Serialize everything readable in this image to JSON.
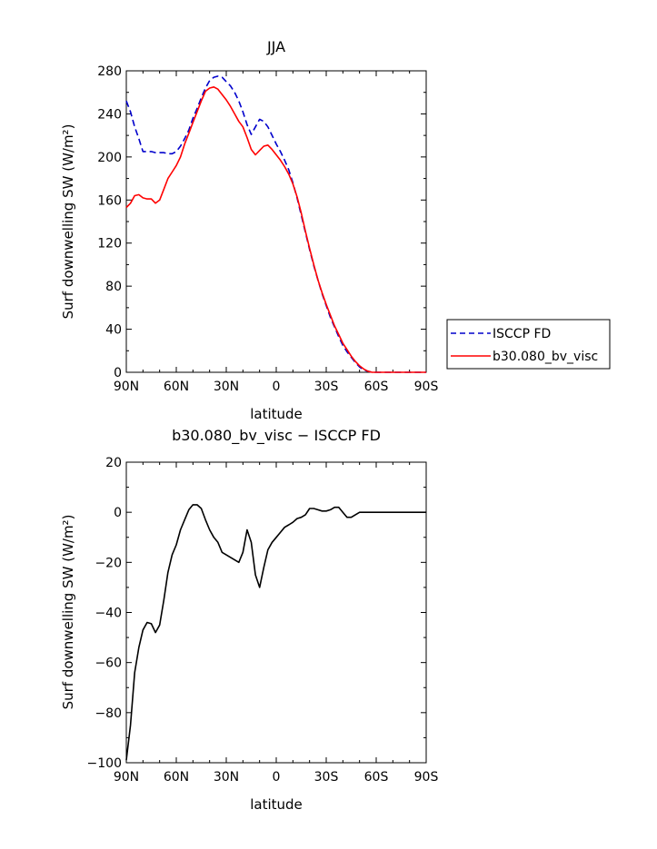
{
  "chart_data": [
    {
      "type": "line",
      "title": "JJA",
      "xlabel": "latitude",
      "ylabel": "Surf downwelling SW (W/m²)",
      "xlim": [
        90,
        -90
      ],
      "ylim": [
        0,
        280
      ],
      "x_ticks": [
        90,
        60,
        30,
        0,
        -30,
        -60,
        -90
      ],
      "x_tick_labels": [
        "90N",
        "60N",
        "30N",
        "0",
        "30S",
        "60S",
        "90S"
      ],
      "y_ticks": [
        0,
        40,
        80,
        120,
        160,
        200,
        240,
        280
      ],
      "y_tick_labels": [
        "0",
        "40",
        "80",
        "120",
        "160",
        "200",
        "240",
        "280"
      ],
      "grid": false,
      "legend_position": "right-outside",
      "series": [
        {
          "name": "ISCCP FD",
          "color": "#0000cc",
          "dash": "dashed",
          "x": [
            90,
            87.5,
            85,
            82.5,
            80,
            77.5,
            75,
            72.5,
            70,
            67.5,
            65,
            62.5,
            60,
            57.5,
            55,
            52.5,
            50,
            47.5,
            45,
            42.5,
            40,
            37.5,
            35,
            32.5,
            30,
            27.5,
            25,
            22.5,
            20,
            17.5,
            15,
            12.5,
            10,
            7.5,
            5,
            2.5,
            0,
            -2.5,
            -5,
            -7.5,
            -10,
            -12.5,
            -15,
            -17.5,
            -20,
            -22.5,
            -25,
            -27.5,
            -30,
            -32.5,
            -35,
            -37.5,
            -40,
            -42.5,
            -45,
            -47.5,
            -50,
            -52.5,
            -55,
            -57.5,
            -60,
            -62.5,
            -65,
            -67.5,
            -70,
            -72.5,
            -75,
            -77.5,
            -80,
            -82.5,
            -85,
            -87.5,
            -90
          ],
          "y": [
            252,
            242,
            228,
            217,
            205,
            205,
            205,
            204,
            204,
            204,
            203,
            203,
            205,
            210,
            217,
            225,
            236,
            245,
            255,
            264,
            271,
            274,
            275,
            274,
            270,
            266,
            260,
            252,
            242,
            230,
            221,
            228,
            235,
            233,
            228,
            220,
            212,
            205,
            197,
            188,
            176,
            162,
            146,
            130,
            114,
            99,
            86,
            73,
            62,
            51,
            42,
            33,
            25,
            19,
            14,
            9,
            5,
            2,
            1,
            0,
            0,
            0,
            0,
            0,
            0,
            0,
            0,
            0,
            0,
            0,
            0,
            0,
            0
          ]
        },
        {
          "name": "b30.080_bv_visc",
          "color": "#ff0000",
          "dash": "solid",
          "x": [
            90,
            87.5,
            85,
            82.5,
            80,
            77.5,
            75,
            72.5,
            70,
            67.5,
            65,
            62.5,
            60,
            57.5,
            55,
            52.5,
            50,
            47.5,
            45,
            42.5,
            40,
            37.5,
            35,
            32.5,
            30,
            27.5,
            25,
            22.5,
            20,
            17.5,
            15,
            12.5,
            10,
            7.5,
            5,
            2.5,
            0,
            -2.5,
            -5,
            -7.5,
            -10,
            -12.5,
            -15,
            -17.5,
            -20,
            -22.5,
            -25,
            -27.5,
            -30,
            -32.5,
            -35,
            -37.5,
            -40,
            -42.5,
            -45,
            -47.5,
            -50,
            -52.5,
            -55,
            -57.5,
            -60,
            -62.5,
            -65,
            -67.5,
            -70,
            -72.5,
            -75,
            -77.5,
            -80,
            -82.5,
            -85,
            -87.5,
            -90
          ],
          "y": [
            153,
            157,
            164,
            165,
            162,
            161,
            161,
            157,
            160,
            170,
            180,
            186,
            192,
            200,
            212,
            222,
            232,
            242,
            252,
            261,
            264,
            265,
            263,
            258,
            253,
            247,
            240,
            233,
            228,
            218,
            207,
            202,
            206,
            210,
            211,
            207,
            202,
            197,
            191,
            184,
            175,
            163,
            148,
            131,
            115,
            100,
            86,
            74,
            63,
            53,
            43,
            35,
            27,
            21,
            15,
            10,
            6,
            3,
            1,
            0,
            0,
            0,
            0,
            0,
            0,
            0,
            0,
            0,
            0,
            0,
            0,
            0,
            0
          ]
        }
      ]
    },
    {
      "type": "line",
      "title": "b30.080_bv_visc − ISCCP FD",
      "xlabel": "latitude",
      "ylabel": "Surf downwelling SW (W/m²)",
      "xlim": [
        90,
        -90
      ],
      "ylim": [
        -100,
        20
      ],
      "x_ticks": [
        90,
        60,
        30,
        0,
        -30,
        -60,
        -90
      ],
      "x_tick_labels": [
        "90N",
        "60N",
        "30N",
        "0",
        "30S",
        "60S",
        "90S"
      ],
      "y_ticks": [
        -100,
        -80,
        -60,
        -40,
        -20,
        0,
        20
      ],
      "y_tick_labels": [
        "−100",
        "−80",
        "−60",
        "−40",
        "−20",
        "0",
        "20"
      ],
      "grid": false,
      "series": [
        {
          "color": "#000000",
          "dash": "solid",
          "x": [
            90,
            87.5,
            85,
            82.5,
            80,
            77.5,
            75,
            72.5,
            70,
            67.5,
            65,
            62.5,
            60,
            57.5,
            55,
            52.5,
            50,
            47.5,
            45,
            42.5,
            40,
            37.5,
            35,
            32.5,
            30,
            27.5,
            25,
            22.5,
            20,
            17.5,
            15,
            12.5,
            10,
            7.5,
            5,
            2.5,
            0,
            -2.5,
            -5,
            -7.5,
            -10,
            -12.5,
            -15,
            -17.5,
            -20,
            -22.5,
            -25,
            -27.5,
            -30,
            -32.5,
            -35,
            -37.5,
            -40,
            -42.5,
            -45,
            -47.5,
            -50,
            -52.5,
            -55,
            -57.5,
            -60,
            -62.5,
            -65,
            -67.5,
            -70,
            -72.5,
            -75,
            -77.5,
            -80,
            -82.5,
            -85,
            -87.5,
            -90
          ],
          "y": [
            -99,
            -85,
            -64,
            -54,
            -47,
            -44,
            -44.5,
            -48,
            -45,
            -35,
            -24,
            -17,
            -13,
            -7,
            -3,
            1,
            3,
            3,
            1.5,
            -3,
            -7,
            -10,
            -12,
            -16,
            -17,
            -18,
            -19,
            -20,
            -16,
            -7,
            -12,
            -25,
            -30,
            -22,
            -15,
            -12,
            -10,
            -8,
            -6,
            -5,
            -4,
            -2.5,
            -2,
            -1,
            1.5,
            1.5,
            1,
            0.5,
            0.5,
            1,
            2,
            2,
            0,
            -2,
            -2,
            -1,
            0,
            0,
            0,
            0,
            0,
            0,
            0,
            0,
            0,
            0,
            0,
            0,
            0,
            0,
            0,
            0,
            0
          ]
        }
      ]
    }
  ]
}
